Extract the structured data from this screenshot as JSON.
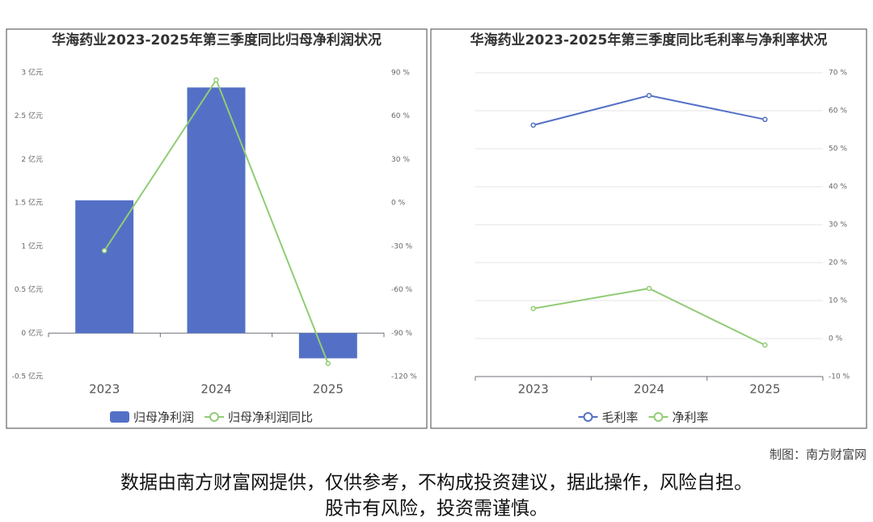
{
  "chart_data": [
    {
      "type": "bar",
      "title": "华海药业2023-2025年第三季度同比归母净利润状况",
      "categories": [
        "2023",
        "2024",
        "2025"
      ],
      "series": [
        {
          "name": "归母净利润",
          "color": "#5470c6",
          "values": [
            1.53,
            2.83,
            -0.29
          ]
        },
        {
          "name": "归母净利润同比",
          "color": "#91cc75",
          "axis": "y2",
          "values": [
            -33,
            85,
            -111
          ]
        }
      ],
      "ylim": [
        -0.5,
        3
      ],
      "yticks": [
        {
          "value": -0.5,
          "label": "-0.5 亿元"
        },
        {
          "value": 0,
          "label": "0 亿元"
        },
        {
          "value": 0.5,
          "label": "0.5 亿元"
        },
        {
          "value": 1,
          "label": "1 亿元"
        },
        {
          "value": 1.5,
          "label": "1.5 亿元"
        },
        {
          "value": 2,
          "label": "2 亿元"
        },
        {
          "value": 2.5,
          "label": "2.5 亿元"
        },
        {
          "value": 3,
          "label": "3 亿元"
        }
      ],
      "y2lim": [
        -120,
        90
      ],
      "y2ticks": [
        {
          "value": -120,
          "label": "-120 %"
        },
        {
          "value": -90,
          "label": "-90 %"
        },
        {
          "value": -60,
          "label": "-60 %"
        },
        {
          "value": -30,
          "label": "-30 %"
        },
        {
          "value": 0,
          "label": "0 %"
        },
        {
          "value": 30,
          "label": "30 %"
        },
        {
          "value": 60,
          "label": "60 %"
        },
        {
          "value": 90,
          "label": "90 %"
        }
      ],
      "grid": false
    },
    {
      "type": "line",
      "title": "华海药业2023-2025年第三季度同比毛利率与净利率状况",
      "categories": [
        "2023",
        "2024",
        "2025"
      ],
      "series": [
        {
          "name": "毛利率",
          "color": "#5470c6",
          "values": [
            56.2,
            64.0,
            57.7
          ]
        },
        {
          "name": "净利率",
          "color": "#91cc75",
          "values": [
            7.9,
            13.2,
            -1.7
          ]
        }
      ],
      "ylim": [
        -10,
        70
      ],
      "yticks": [
        {
          "value": -10,
          "label": "-10 %"
        },
        {
          "value": 0,
          "label": "0 %"
        },
        {
          "value": 10,
          "label": "10 %"
        },
        {
          "value": 20,
          "label": "20 %"
        },
        {
          "value": 30,
          "label": "30 %"
        },
        {
          "value": 40,
          "label": "40 %"
        },
        {
          "value": 50,
          "label": "50 %"
        },
        {
          "value": 60,
          "label": "60 %"
        },
        {
          "value": 70,
          "label": "70 %"
        }
      ],
      "y_axis_side": "right",
      "grid": true
    }
  ],
  "footer": {
    "credit": "制图：南方财富网",
    "disclaimer": [
      "数据由南方财富网提供，仅供参考，不构成投资建议，据此操作，风险自担。",
      "股市有风险，投资需谨慎。"
    ]
  }
}
